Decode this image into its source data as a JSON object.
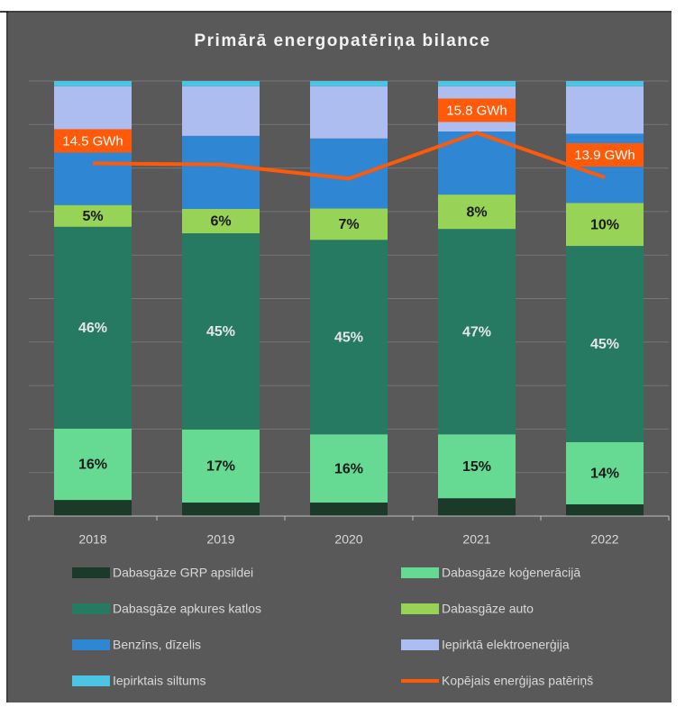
{
  "chart_data": {
    "type": "bar",
    "stacked": true,
    "title": "Primārā energopatēriņa bilance",
    "categories": [
      "2018",
      "2019",
      "2020",
      "2021",
      "2022"
    ],
    "ylim": [
      0,
      100
    ],
    "yticks": [
      0,
      10,
      20,
      30,
      40,
      50,
      60,
      70,
      80,
      90,
      100
    ],
    "grid": true,
    "y2lim": [
      -0.5,
      18
    ],
    "legend": "bottom",
    "series": [
      {
        "name": "Dabasgāze GRP apsildei",
        "color": "#1b3a29",
        "values": [
          3.7,
          3.1,
          3.1,
          4.1,
          2.7
        ]
      },
      {
        "name": "Dabasgāze koģenerācijā",
        "color": "#66d993",
        "values": [
          16.4,
          16.8,
          15.7,
          14.7,
          14.3
        ],
        "value_labels": [
          "16%",
          "17%",
          "16%",
          "15%",
          "14%"
        ]
      },
      {
        "name": "Dabasgāze apkures katlos",
        "color": "#267a62",
        "values": [
          46.4,
          45.1,
          44.7,
          47.2,
          45.1
        ],
        "value_labels": [
          "46%",
          "45%",
          "45%",
          "47%",
          "45%"
        ]
      },
      {
        "name": "Dabasgāze auto",
        "color": "#97d356",
        "values": [
          5,
          5.6,
          7.2,
          7.9,
          9.9
        ],
        "value_labels": [
          "5%",
          "6%",
          "7%",
          "8%",
          "10%"
        ]
      },
      {
        "name": "Benzīns, dīzelis",
        "color": "#2f86d2",
        "values": [
          16.1,
          16.8,
          16.1,
          14.5,
          15.9
        ]
      },
      {
        "name": "Iepirktā elektroenerģija",
        "color": "#aebdf0",
        "values": [
          11.2,
          11.4,
          12,
          10.4,
          10.9
        ]
      },
      {
        "name": "Iepirktais siltums",
        "color": "#4cc4e4",
        "values": [
          1.2,
          1.2,
          1.2,
          1.2,
          1.2
        ]
      },
      {
        "name": "Kopējais enerģijas patēriņš",
        "type": "line",
        "axis": "y2",
        "color": "#ff5a0a",
        "values": [
          14.5,
          14.45,
          13.85,
          15.8,
          13.9
        ],
        "value_labels": [
          "14.5 GWh",
          null,
          null,
          "15.8 GWh",
          "13.9 GWh"
        ]
      }
    ]
  }
}
